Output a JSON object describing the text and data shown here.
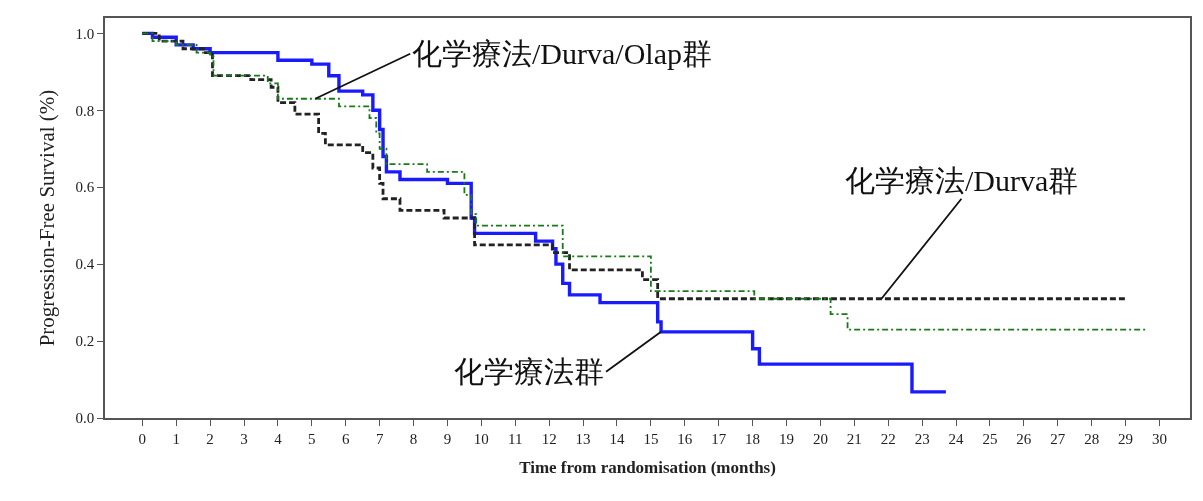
{
  "chart_data": {
    "type": "step",
    "xlabel": "Time from randomisation (months)",
    "ylabel": "Progression-Free Survival (%)",
    "xlim": [
      -1.1,
      30.9
    ],
    "xticks": [
      0,
      1,
      2,
      3,
      4,
      5,
      6,
      7,
      8,
      9,
      10,
      11,
      12,
      13,
      14,
      15,
      16,
      17,
      18,
      19,
      20,
      21,
      22,
      23,
      24,
      25,
      26,
      27,
      28,
      29,
      30
    ],
    "ylim": [
      0,
      1.04
    ],
    "yticks": [
      {
        "value": 0,
        "label": "0.0"
      },
      {
        "value": 0.2,
        "label": "0.2"
      },
      {
        "value": 0.4,
        "label": "0.4"
      },
      {
        "value": 0.6,
        "label": "0.6"
      },
      {
        "value": 0.8,
        "label": "0.8"
      },
      {
        "value": 1,
        "label": "1.0"
      }
    ],
    "series": [
      {
        "color": "#1a7a1a",
        "line_style": "dashdot",
        "x": [
          0,
          0.3,
          1.0,
          1.6,
          2.0,
          2.1,
          3.7,
          4.0,
          5.8,
          6.7,
          6.9,
          7.0,
          7.2,
          8.4,
          9.5,
          9.7,
          9.85,
          12.4,
          15.0,
          18.05,
          20.3,
          20.8,
          29.65
        ],
        "values": [
          1.0,
          0.98,
          0.97,
          0.95,
          0.94,
          0.89,
          0.87,
          0.83,
          0.81,
          0.78,
          0.74,
          0.7,
          0.66,
          0.64,
          0.58,
          0.53,
          0.5,
          0.42,
          0.33,
          0.31,
          0.27,
          0.23,
          0.23
        ]
      },
      {
        "color": "#222222",
        "line_style": "dashed",
        "x": [
          0,
          0.5,
          1.2,
          1.8,
          2.07,
          3.2,
          3.8,
          4.0,
          4.5,
          5.2,
          5.4,
          6.5,
          6.8,
          7.0,
          7.1,
          7.6,
          8.9,
          9.8,
          12.1,
          12.6,
          14.75,
          15.2,
          29.0
        ],
        "values": [
          1.0,
          0.98,
          0.96,
          0.95,
          0.89,
          0.88,
          0.86,
          0.82,
          0.79,
          0.74,
          0.71,
          0.69,
          0.65,
          0.61,
          0.57,
          0.54,
          0.52,
          0.45,
          0.43,
          0.385,
          0.36,
          0.31,
          0.31
        ]
      },
      {
        "color": "#1a1aff",
        "line_style": "solid",
        "x": [
          0,
          0.3,
          1.0,
          1.5,
          2.0,
          4.0,
          5.0,
          5.5,
          5.8,
          6.5,
          6.8,
          7.0,
          7.1,
          7.2,
          7.6,
          9.0,
          9.7,
          9.8,
          11.6,
          12.1,
          12.2,
          12.4,
          12.6,
          13.5,
          15.2,
          15.3,
          18.0,
          18.2,
          22.7,
          23.7
        ],
        "values": [
          1.0,
          0.99,
          0.97,
          0.96,
          0.95,
          0.93,
          0.92,
          0.89,
          0.85,
          0.84,
          0.8,
          0.75,
          0.68,
          0.64,
          0.62,
          0.61,
          0.52,
          0.48,
          0.46,
          0.44,
          0.4,
          0.35,
          0.32,
          0.3,
          0.25,
          0.224,
          0.18,
          0.14,
          0.068,
          0.068
        ]
      }
    ],
    "annotations": [
      {
        "text": "化学療法/Durva/Olap群",
        "x": 5.1,
        "y": 0.83
      },
      {
        "text": "化学療法/Durva群",
        "x": 21.8,
        "y": 0.31
      },
      {
        "text": "化学療法群",
        "x": 15.3,
        "y": 0.224
      }
    ]
  }
}
